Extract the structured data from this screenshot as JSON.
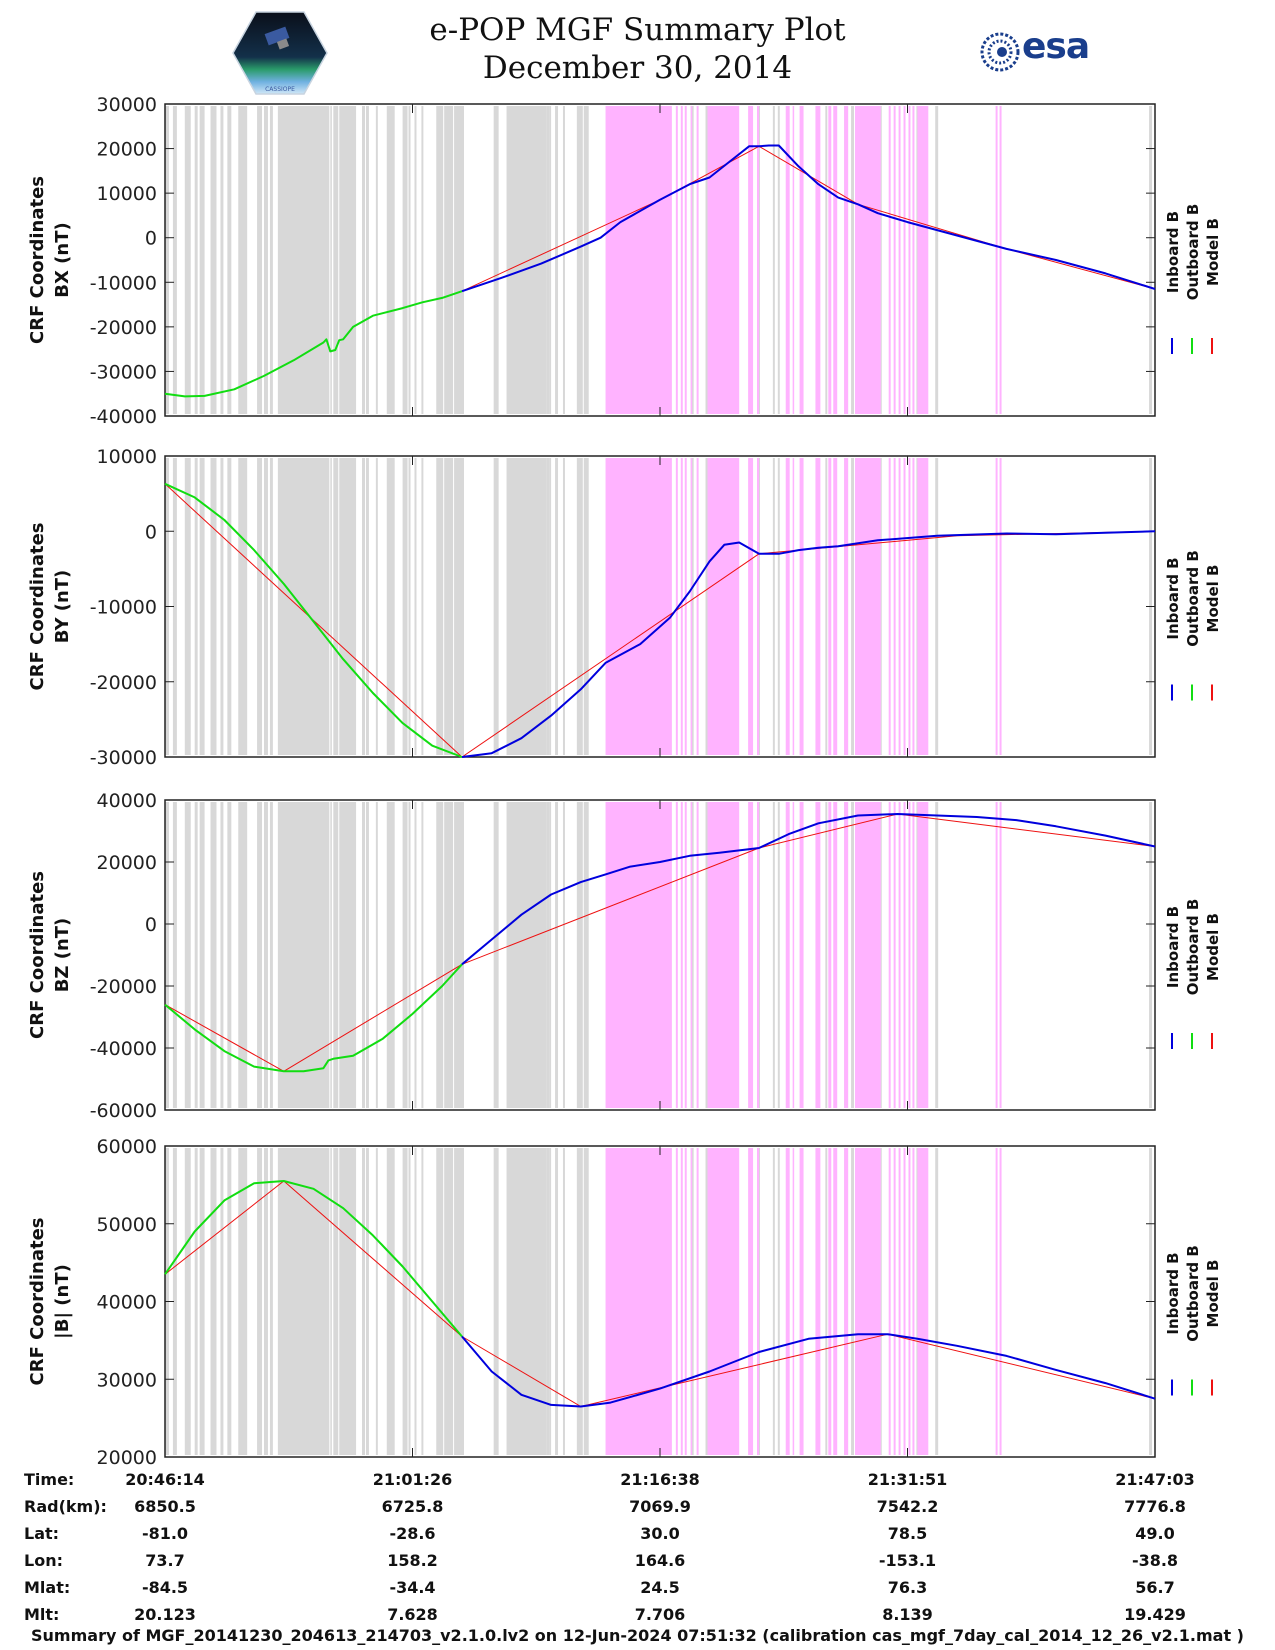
{
  "header": {
    "title_line1": "e-POP MGF Summary Plot",
    "title_line2": "December 30, 2014",
    "logo_left": "cassiope-mission-logo",
    "logo_right_text": "esa"
  },
  "colors": {
    "inboard": "#0000dd",
    "outboard": "#11dd11",
    "model": "#ee1111",
    "shade_gray": "#d8d8d8",
    "shade_pink": "#ffb3ff",
    "axis": "#222222"
  },
  "legend": [
    {
      "label": "Inboard B",
      "color": "#0000dd"
    },
    {
      "label": "Outboard B",
      "color": "#11dd11"
    },
    {
      "label": "Model B",
      "color": "#ee1111"
    }
  ],
  "shading": {
    "note": "Background bands in fractional time units (0 = 20:46:14, 1 = 21:47:03)",
    "gray": [
      [
        0.0,
        0.004
      ],
      [
        0.008,
        0.012
      ],
      [
        0.02,
        0.026
      ],
      [
        0.03,
        0.033
      ],
      [
        0.035,
        0.04
      ],
      [
        0.046,
        0.052
      ],
      [
        0.056,
        0.059
      ],
      [
        0.063,
        0.067
      ],
      [
        0.074,
        0.083
      ],
      [
        0.093,
        0.098
      ],
      [
        0.1,
        0.104
      ],
      [
        0.106,
        0.109
      ],
      [
        0.114,
        0.166
      ],
      [
        0.167,
        0.168
      ],
      [
        0.17,
        0.175
      ],
      [
        0.176,
        0.193
      ],
      [
        0.199,
        0.202
      ],
      [
        0.203,
        0.206
      ],
      [
        0.213,
        0.215
      ],
      [
        0.224,
        0.232
      ],
      [
        0.24,
        0.245
      ],
      [
        0.246,
        0.248
      ],
      [
        0.252,
        0.254
      ],
      [
        0.259,
        0.261
      ],
      [
        0.274,
        0.281
      ],
      [
        0.282,
        0.291
      ],
      [
        0.292,
        0.302
      ],
      [
        0.332,
        0.337
      ],
      [
        0.345,
        0.385
      ],
      [
        0.385,
        0.388
      ],
      [
        0.388,
        0.39
      ],
      [
        0.394,
        0.397
      ],
      [
        0.402,
        0.404
      ],
      [
        0.416,
        0.422
      ],
      [
        0.423,
        0.428
      ],
      [
        0.463,
        0.47
      ],
      [
        0.484,
        0.489
      ],
      [
        0.492,
        0.495
      ],
      [
        0.5,
        0.503
      ],
      [
        0.531,
        0.534
      ],
      [
        0.546,
        0.55
      ],
      [
        0.558,
        0.561
      ],
      [
        0.598,
        0.601
      ],
      [
        0.614,
        0.616
      ],
      [
        0.619,
        0.621
      ],
      [
        0.667,
        0.669
      ],
      [
        0.686,
        0.69
      ],
      [
        0.693,
        0.696
      ],
      [
        0.717,
        0.719
      ],
      [
        0.721,
        0.724
      ],
      [
        0.759,
        0.761
      ],
      [
        0.778,
        0.781
      ],
      [
        0.994,
        0.997
      ]
    ],
    "pink": [
      [
        0.445,
        0.512
      ],
      [
        0.516,
        0.518
      ],
      [
        0.521,
        0.523
      ],
      [
        0.525,
        0.527
      ],
      [
        0.531,
        0.532
      ],
      [
        0.537,
        0.539
      ],
      [
        0.548,
        0.58
      ],
      [
        0.589,
        0.594
      ],
      [
        0.598,
        0.6
      ],
      [
        0.627,
        0.631
      ],
      [
        0.634,
        0.635
      ],
      [
        0.641,
        0.645
      ],
      [
        0.657,
        0.662
      ],
      [
        0.67,
        0.673
      ],
      [
        0.675,
        0.679
      ],
      [
        0.686,
        0.69
      ],
      [
        0.697,
        0.723
      ],
      [
        0.731,
        0.733
      ],
      [
        0.736,
        0.738
      ],
      [
        0.741,
        0.743
      ],
      [
        0.746,
        0.748
      ],
      [
        0.751,
        0.753
      ],
      [
        0.755,
        0.757
      ],
      [
        0.76,
        0.771
      ],
      [
        0.839,
        0.841
      ],
      [
        0.843,
        0.845
      ]
    ]
  },
  "xaxis": {
    "ticks": [
      "20:46:14",
      "21:01:26",
      "21:16:38",
      "21:31:51",
      "21:47:03"
    ]
  },
  "info_table": {
    "rows": [
      {
        "label": "Time:",
        "values": [
          "20:46:14",
          "21:01:26",
          "21:16:38",
          "21:31:51",
          "21:47:03"
        ]
      },
      {
        "label": "Rad(km):",
        "values": [
          "6850.5",
          "6725.8",
          "7069.9",
          "7542.2",
          "7776.8"
        ]
      },
      {
        "label": "Lat:",
        "values": [
          "-81.0",
          "-28.6",
          "30.0",
          "78.5",
          "49.0"
        ]
      },
      {
        "label": "Lon:",
        "values": [
          "73.7",
          "158.2",
          "164.6",
          "-153.1",
          "-38.8"
        ]
      },
      {
        "label": "Mlat:",
        "values": [
          "-84.5",
          "-34.4",
          "24.5",
          "76.3",
          "56.7"
        ]
      },
      {
        "label": "Mlt:",
        "values": [
          "20.123",
          "7.628",
          "7.706",
          "8.139",
          "19.429"
        ]
      }
    ]
  },
  "footer": "Summary of MGF_20141230_204613_214703_v2.1.0.lv2 on 12-Jun-2024 07:51:32 (calibration cas_mgf_7day_cal_2014_12_26_v2.1.mat )",
  "chart_data": [
    {
      "type": "line",
      "title": "CRF Coordinates BX (nT)",
      "ylabel_line1": "CRF Coordinates",
      "ylabel_line2": "BX (nT)",
      "ylim": [
        -40000,
        30000
      ],
      "yticks": [
        -40000,
        -30000,
        -20000,
        -10000,
        0,
        10000,
        20000,
        30000
      ],
      "x_units": "fraction of interval 20:46:14–21:47:03",
      "series": [
        {
          "name": "Outboard B",
          "x": [
            0.0,
            0.02,
            0.04,
            0.07,
            0.1,
            0.13,
            0.16,
            0.163,
            0.167,
            0.172,
            0.176,
            0.18,
            0.19,
            0.21,
            0.24,
            0.26,
            0.28,
            0.3
          ],
          "values": [
            -35000,
            -35600,
            -35500,
            -34000,
            -31000,
            -27500,
            -23500,
            -22800,
            -25500,
            -25200,
            -23000,
            -22800,
            -20000,
            -17500,
            -15800,
            -14500,
            -13500,
            -12000
          ]
        },
        {
          "name": "Inboard B",
          "x": [
            0.3,
            0.34,
            0.38,
            0.42,
            0.44,
            0.46,
            0.5,
            0.53,
            0.55,
            0.57,
            0.59,
            0.6,
            0.61,
            0.62,
            0.64,
            0.66,
            0.68,
            0.7,
            0.72,
            0.75,
            0.8,
            0.85,
            0.9,
            0.95,
            1.0
          ],
          "values": [
            -12000,
            -9000,
            -5800,
            -2000,
            0,
            3500,
            8500,
            12000,
            13500,
            17000,
            20500,
            20500,
            20700,
            20700,
            16000,
            12000,
            9000,
            7500,
            5500,
            3500,
            500,
            -2500,
            -5000,
            -8000,
            -11500
          ]
        },
        {
          "name": "Model B",
          "x": [
            0.3,
            0.5,
            0.6,
            0.7,
            0.85,
            1.0
          ],
          "values": [
            -12000,
            8500,
            20500,
            7500,
            -2500,
            -11500
          ]
        }
      ]
    },
    {
      "type": "line",
      "title": "CRF Coordinates BY (nT)",
      "ylabel_line1": "CRF Coordinates",
      "ylabel_line2": "BY (nT)",
      "ylim": [
        -30000,
        10000
      ],
      "yticks": [
        -30000,
        -20000,
        -10000,
        0,
        10000
      ],
      "series": [
        {
          "name": "Outboard B",
          "x": [
            0.0,
            0.03,
            0.06,
            0.09,
            0.12,
            0.15,
            0.18,
            0.21,
            0.24,
            0.27,
            0.3
          ],
          "values": [
            6300,
            4500,
            1500,
            -2500,
            -7000,
            -12000,
            -17000,
            -21500,
            -25500,
            -28500,
            -30000
          ]
        },
        {
          "name": "Inboard B",
          "x": [
            0.3,
            0.33,
            0.36,
            0.39,
            0.42,
            0.445,
            0.48,
            0.51,
            0.53,
            0.55,
            0.565,
            0.58,
            0.6,
            0.62,
            0.64,
            0.66,
            0.68,
            0.72,
            0.78,
            0.85,
            0.9,
            0.95,
            1.0
          ],
          "values": [
            -30000,
            -29500,
            -27500,
            -24500,
            -21000,
            -17500,
            -15000,
            -11500,
            -8000,
            -4000,
            -1800,
            -1500,
            -3000,
            -3000,
            -2500,
            -2200,
            -2000,
            -1200,
            -600,
            -300,
            -400,
            -200,
            0
          ]
        },
        {
          "name": "Model B",
          "x": [
            0.0,
            0.3,
            0.6,
            0.8,
            1.0
          ],
          "values": [
            6300,
            -30000,
            -3000,
            -600,
            0
          ]
        }
      ]
    },
    {
      "type": "line",
      "title": "CRF Coordinates BZ (nT)",
      "ylabel_line1": "CRF Coordinates",
      "ylabel_line2": "BZ (nT)",
      "ylim": [
        -60000,
        40000
      ],
      "yticks": [
        -60000,
        -40000,
        -20000,
        0,
        20000,
        40000
      ],
      "series": [
        {
          "name": "Outboard B",
          "x": [
            0.0,
            0.03,
            0.06,
            0.09,
            0.12,
            0.14,
            0.16,
            0.165,
            0.17,
            0.19,
            0.22,
            0.25,
            0.28,
            0.3
          ],
          "values": [
            -26000,
            -34000,
            -41000,
            -46000,
            -47500,
            -47500,
            -46500,
            -44000,
            -43500,
            -42500,
            -37000,
            -29000,
            -20000,
            -13000
          ]
        },
        {
          "name": "Inboard B",
          "x": [
            0.3,
            0.33,
            0.36,
            0.39,
            0.42,
            0.445,
            0.47,
            0.5,
            0.53,
            0.56,
            0.6,
            0.63,
            0.66,
            0.7,
            0.74,
            0.78,
            0.82,
            0.86,
            0.9,
            0.95,
            1.0
          ],
          "values": [
            -13000,
            -5000,
            3000,
            9500,
            13500,
            16000,
            18500,
            20000,
            22000,
            23000,
            24500,
            29000,
            32500,
            35000,
            35500,
            35000,
            34500,
            33500,
            31500,
            28500,
            25000
          ]
        },
        {
          "name": "Model B",
          "x": [
            0.0,
            0.12,
            0.3,
            0.6,
            0.74,
            1.0
          ],
          "values": [
            -26000,
            -47500,
            -13000,
            24500,
            35500,
            25000
          ]
        }
      ]
    },
    {
      "type": "line",
      "title": "CRF Coordinates |B| (nT)",
      "ylabel_line1": "CRF Coordinates",
      "ylabel_line2": "|B| (nT)",
      "ylim": [
        20000,
        60000
      ],
      "yticks": [
        20000,
        30000,
        40000,
        50000,
        60000
      ],
      "series": [
        {
          "name": "Outboard B",
          "x": [
            0.0,
            0.03,
            0.06,
            0.09,
            0.12,
            0.15,
            0.18,
            0.21,
            0.24,
            0.27,
            0.3
          ],
          "values": [
            43500,
            49000,
            53000,
            55200,
            55500,
            54500,
            52000,
            48500,
            44500,
            40000,
            35500
          ]
        },
        {
          "name": "Inboard B",
          "x": [
            0.3,
            0.33,
            0.36,
            0.39,
            0.42,
            0.45,
            0.5,
            0.55,
            0.6,
            0.65,
            0.7,
            0.73,
            0.76,
            0.8,
            0.85,
            0.9,
            0.95,
            1.0
          ],
          "values": [
            35500,
            31000,
            28000,
            26700,
            26500,
            27000,
            28800,
            31000,
            33500,
            35200,
            35800,
            35800,
            35200,
            34300,
            33000,
            31200,
            29500,
            27500
          ]
        },
        {
          "name": "Model B",
          "x": [
            0.0,
            0.12,
            0.3,
            0.42,
            0.73,
            1.0
          ],
          "values": [
            43500,
            55500,
            35500,
            26500,
            35800,
            27500
          ]
        }
      ]
    }
  ]
}
